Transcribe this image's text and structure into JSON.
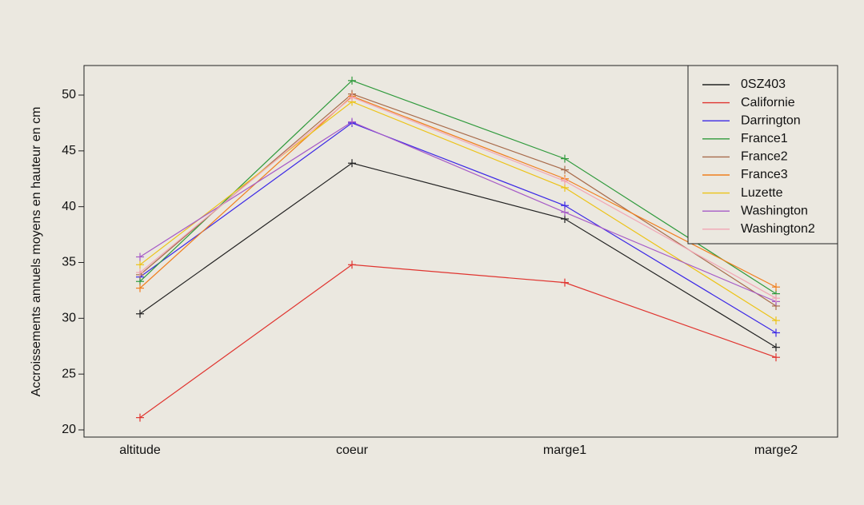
{
  "chart_data": {
    "type": "line",
    "title": "",
    "xlabel": "",
    "ylabel": "Accroissements annuels moyens en hauteur en cm",
    "categories": [
      "altitude",
      "coeur",
      "marge1",
      "marge2"
    ],
    "ylim": [
      20,
      53
    ],
    "yticks": [
      20,
      25,
      30,
      35,
      40,
      45,
      50
    ],
    "grid": false,
    "legend_position": "top-right",
    "series": [
      {
        "name": "0SZ403",
        "color": "#222222",
        "values": [
          30.4,
          43.9,
          38.9,
          27.4
        ]
      },
      {
        "name": "Californie",
        "color": "#e0342f",
        "values": [
          21.1,
          34.8,
          33.2,
          26.5
        ]
      },
      {
        "name": "Darrington",
        "color": "#3b28e6",
        "values": [
          33.7,
          47.5,
          40.1,
          28.7
        ]
      },
      {
        "name": "France1",
        "color": "#2f9a3c",
        "values": [
          33.3,
          51.3,
          44.3,
          32.2
        ]
      },
      {
        "name": "France2",
        "color": "#a86b4b",
        "values": [
          33.9,
          50.1,
          43.3,
          31.1
        ]
      },
      {
        "name": "France3",
        "color": "#f07f1e",
        "values": [
          32.7,
          49.9,
          42.5,
          32.8
        ]
      },
      {
        "name": "Luzette",
        "color": "#ecc317",
        "values": [
          34.8,
          49.4,
          41.7,
          29.8
        ]
      },
      {
        "name": "Washington",
        "color": "#a65ac7",
        "values": [
          35.5,
          47.6,
          39.5,
          31.5
        ]
      },
      {
        "name": "Washington2",
        "color": "#f2a5b5",
        "values": [
          34.1,
          49.8,
          42.3,
          31.8
        ]
      }
    ]
  }
}
